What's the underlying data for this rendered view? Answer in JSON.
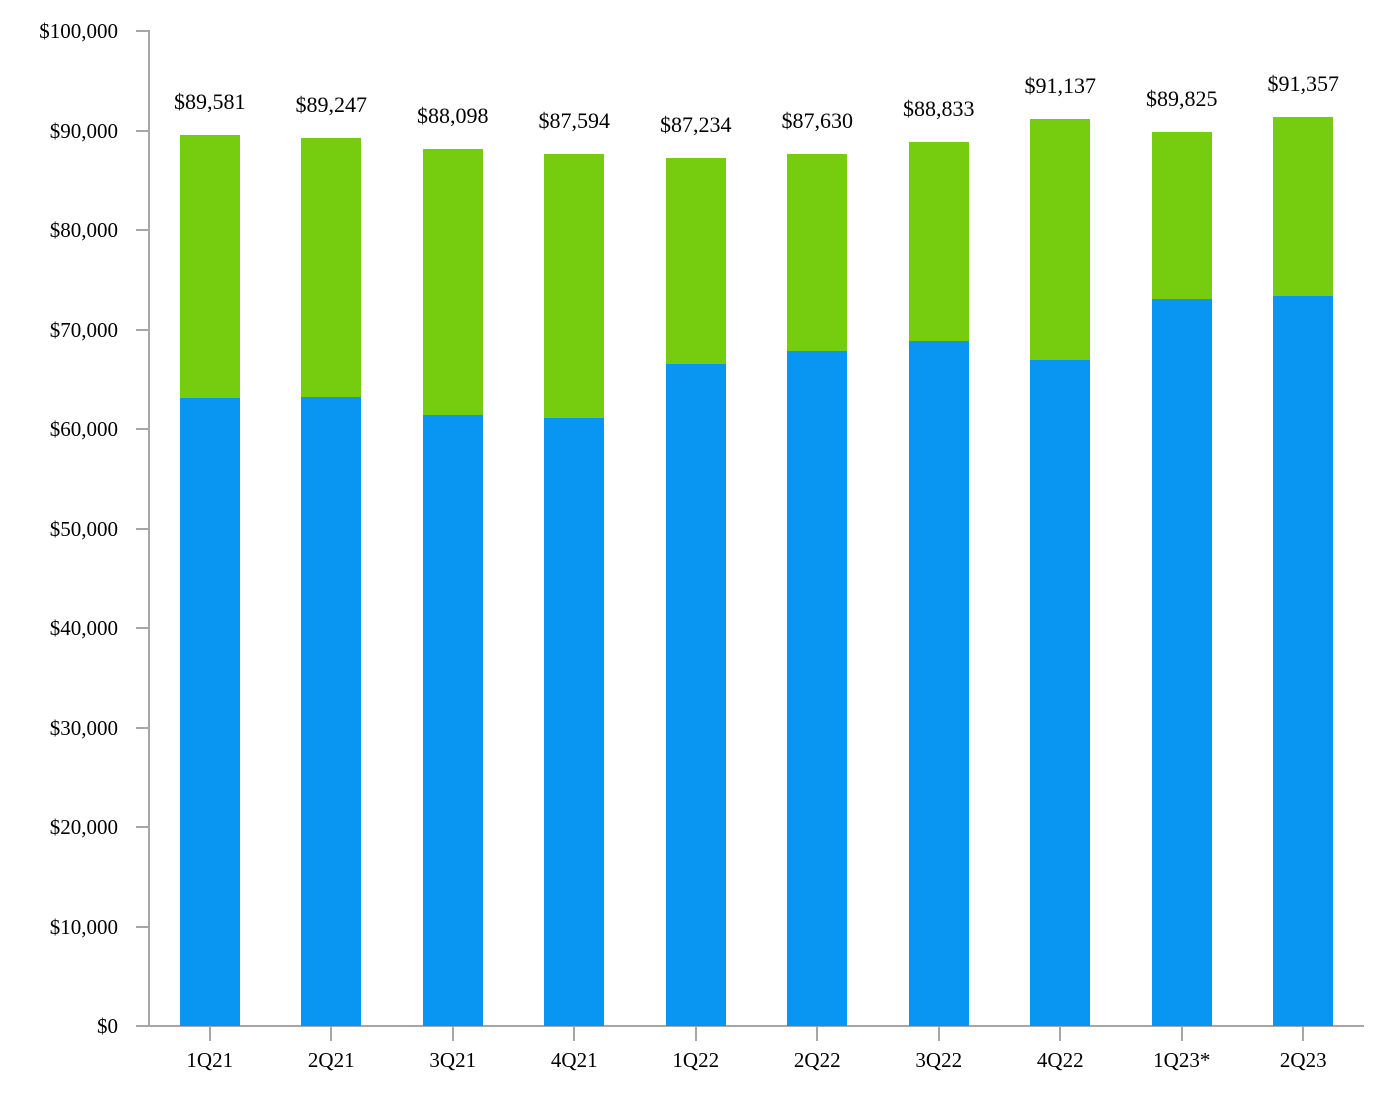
{
  "chart_data": {
    "type": "bar",
    "stacked": true,
    "title": "",
    "xlabel": "",
    "ylabel": "",
    "categories": [
      "1Q21",
      "2Q21",
      "3Q21",
      "4Q21",
      "1Q22",
      "2Q22",
      "3Q22",
      "4Q22",
      "1Q23*",
      "2Q23"
    ],
    "series": [
      {
        "name": "blue-bottom-segment",
        "color": "#0995f2",
        "values": [
          63100,
          63200,
          61400,
          61100,
          66500,
          67800,
          68800,
          66900,
          73100,
          73400
        ]
      },
      {
        "name": "green-top-segment",
        "color": "#76cc0f",
        "values": [
          26481,
          26047,
          26698,
          26494,
          20734,
          19830,
          20033,
          24237,
          16725,
          17957
        ]
      }
    ],
    "totals": [
      89581,
      89247,
      88098,
      87594,
      87234,
      87630,
      88833,
      91137,
      89825,
      91357
    ],
    "total_labels": [
      "$89,581",
      "$89,247",
      "$88,098",
      "$87,594",
      "$87,234",
      "$87,630",
      "$88,833",
      "$91,137",
      "$89,825",
      "$91,357"
    ],
    "y_axis": {
      "ylim": [
        0,
        100000
      ],
      "tick_step": 10000,
      "tick_labels": [
        "$0",
        "$10,000",
        "$20,000",
        "$30,000",
        "$40,000",
        "$50,000",
        "$60,000",
        "$70,000",
        "$80,000",
        "$90,000",
        "$100,000"
      ]
    },
    "legend": "none",
    "grid": false,
    "axis_color": "#a6a6a6",
    "text_color": "#000000",
    "background_color": "#ffffff"
  }
}
